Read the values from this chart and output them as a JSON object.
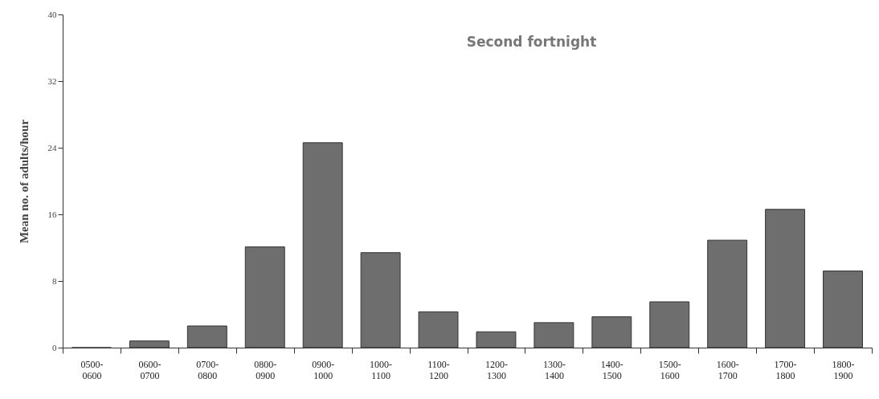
{
  "chart_data": {
    "type": "bar",
    "title": "Second fortnight",
    "ylabel": "Mean no. of adults/hour",
    "categories": [
      "0500-0600",
      "0600-0700",
      "0700-0800",
      "0800-0900",
      "0900-1000",
      "1000-1100",
      "1100-1200",
      "1200-1300",
      "1300-1400",
      "1400-1500",
      "1500-1600",
      "1600-1700",
      "1700-1800",
      "1800-1900"
    ],
    "values": [
      0,
      0.8,
      2.6,
      12.1,
      24.6,
      11.4,
      4.3,
      1.9,
      3.0,
      3.7,
      5.5,
      12.9,
      16.6,
      9.2
    ],
    "color": "#6e6e6e",
    "ylim": [
      0,
      40
    ],
    "yticks": [
      0,
      8,
      16,
      24,
      32,
      40
    ],
    "grid": false
  }
}
